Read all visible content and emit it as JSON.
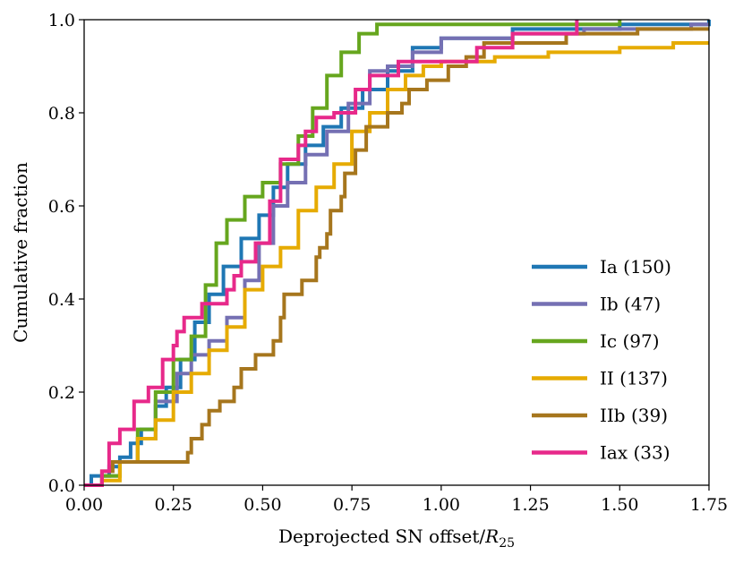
{
  "chart_data": {
    "type": "line",
    "step": true,
    "title": "",
    "xlabel": "Deprojected SN offset/",
    "xlabel_symbol": "R",
    "xlabel_subscript": "25",
    "ylabel": "Cumulative fraction",
    "xlim": [
      0.0,
      1.75
    ],
    "ylim": [
      0.0,
      1.0
    ],
    "xticks": [
      "0.00",
      "0.25",
      "0.50",
      "0.75",
      "1.00",
      "1.25",
      "1.50",
      "1.75"
    ],
    "yticks": [
      "0.0",
      "0.2",
      "0.4",
      "0.6",
      "0.8",
      "1.0"
    ],
    "legend_position": "lower-right",
    "series": [
      {
        "name": "Ia (150)",
        "color": "#1f77b4",
        "points": [
          [
            0,
            0
          ],
          [
            0.02,
            0.02
          ],
          [
            0.07,
            0.04
          ],
          [
            0.1,
            0.06
          ],
          [
            0.13,
            0.09
          ],
          [
            0.16,
            0.12
          ],
          [
            0.2,
            0.17
          ],
          [
            0.23,
            0.21
          ],
          [
            0.27,
            0.27
          ],
          [
            0.31,
            0.35
          ],
          [
            0.35,
            0.41
          ],
          [
            0.39,
            0.47
          ],
          [
            0.44,
            0.53
          ],
          [
            0.49,
            0.58
          ],
          [
            0.53,
            0.64
          ],
          [
            0.57,
            0.69
          ],
          [
            0.62,
            0.73
          ],
          [
            0.67,
            0.77
          ],
          [
            0.72,
            0.81
          ],
          [
            0.78,
            0.85
          ],
          [
            0.85,
            0.89
          ],
          [
            0.92,
            0.94
          ],
          [
            1.0,
            0.96
          ],
          [
            1.2,
            0.98
          ],
          [
            1.5,
            0.99
          ],
          [
            1.75,
            1.0
          ]
        ]
      },
      {
        "name": "Ib (47)",
        "color": "#7570b3",
        "points": [
          [
            0,
            0
          ],
          [
            0.05,
            0.02
          ],
          [
            0.1,
            0.05
          ],
          [
            0.15,
            0.1
          ],
          [
            0.2,
            0.18
          ],
          [
            0.26,
            0.24
          ],
          [
            0.3,
            0.28
          ],
          [
            0.35,
            0.31
          ],
          [
            0.4,
            0.36
          ],
          [
            0.45,
            0.44
          ],
          [
            0.49,
            0.52
          ],
          [
            0.53,
            0.6
          ],
          [
            0.57,
            0.65
          ],
          [
            0.62,
            0.71
          ],
          [
            0.68,
            0.76
          ],
          [
            0.74,
            0.82
          ],
          [
            0.8,
            0.89
          ],
          [
            0.85,
            0.9
          ],
          [
            0.92,
            0.93
          ],
          [
            1.0,
            0.96
          ],
          [
            1.2,
            0.97
          ],
          [
            1.4,
            0.98
          ],
          [
            1.7,
            0.99
          ],
          [
            1.75,
            0.99
          ]
        ]
      },
      {
        "name": "Ic (97)",
        "color": "#66a61e",
        "points": [
          [
            0,
            0
          ],
          [
            0.05,
            0.02
          ],
          [
            0.1,
            0.05
          ],
          [
            0.15,
            0.12
          ],
          [
            0.2,
            0.2
          ],
          [
            0.25,
            0.27
          ],
          [
            0.3,
            0.32
          ],
          [
            0.34,
            0.43
          ],
          [
            0.37,
            0.52
          ],
          [
            0.4,
            0.57
          ],
          [
            0.45,
            0.62
          ],
          [
            0.5,
            0.65
          ],
          [
            0.55,
            0.69
          ],
          [
            0.6,
            0.75
          ],
          [
            0.64,
            0.81
          ],
          [
            0.68,
            0.88
          ],
          [
            0.72,
            0.93
          ],
          [
            0.77,
            0.97
          ],
          [
            0.82,
            0.99
          ],
          [
            1.0,
            0.99
          ],
          [
            1.5,
            1.0
          ]
        ]
      },
      {
        "name": "II (137)",
        "color": "#e6ab02",
        "points": [
          [
            0,
            0
          ],
          [
            0.05,
            0.01
          ],
          [
            0.1,
            0.05
          ],
          [
            0.15,
            0.1
          ],
          [
            0.2,
            0.14
          ],
          [
            0.25,
            0.2
          ],
          [
            0.3,
            0.24
          ],
          [
            0.35,
            0.29
          ],
          [
            0.4,
            0.34
          ],
          [
            0.45,
            0.42
          ],
          [
            0.5,
            0.47
          ],
          [
            0.55,
            0.51
          ],
          [
            0.6,
            0.59
          ],
          [
            0.65,
            0.64
          ],
          [
            0.7,
            0.69
          ],
          [
            0.75,
            0.76
          ],
          [
            0.8,
            0.8
          ],
          [
            0.85,
            0.85
          ],
          [
            0.9,
            0.88
          ],
          [
            0.95,
            0.9
          ],
          [
            1.0,
            0.91
          ],
          [
            1.15,
            0.92
          ],
          [
            1.3,
            0.93
          ],
          [
            1.5,
            0.94
          ],
          [
            1.65,
            0.95
          ],
          [
            1.75,
            0.95
          ]
        ]
      },
      {
        "name": "IIb (39)",
        "color": "#a6761d",
        "points": [
          [
            0,
            0
          ],
          [
            0.05,
            0.03
          ],
          [
            0.08,
            0.05
          ],
          [
            0.29,
            0.07
          ],
          [
            0.3,
            0.1
          ],
          [
            0.33,
            0.13
          ],
          [
            0.35,
            0.16
          ],
          [
            0.38,
            0.18
          ],
          [
            0.42,
            0.21
          ],
          [
            0.44,
            0.25
          ],
          [
            0.48,
            0.28
          ],
          [
            0.53,
            0.31
          ],
          [
            0.55,
            0.36
          ],
          [
            0.56,
            0.41
          ],
          [
            0.61,
            0.44
          ],
          [
            0.65,
            0.49
          ],
          [
            0.66,
            0.51
          ],
          [
            0.68,
            0.54
          ],
          [
            0.69,
            0.59
          ],
          [
            0.72,
            0.62
          ],
          [
            0.73,
            0.67
          ],
          [
            0.76,
            0.72
          ],
          [
            0.79,
            0.77
          ],
          [
            0.85,
            0.8
          ],
          [
            0.89,
            0.82
          ],
          [
            0.91,
            0.85
          ],
          [
            0.96,
            0.87
          ],
          [
            1.02,
            0.9
          ],
          [
            1.07,
            0.92
          ],
          [
            1.12,
            0.95
          ],
          [
            1.35,
            0.97
          ],
          [
            1.55,
            0.98
          ],
          [
            1.75,
            0.98
          ]
        ]
      },
      {
        "name": "Iax (33)",
        "color": "#e7298a",
        "points": [
          [
            0,
            0
          ],
          [
            0.05,
            0.03
          ],
          [
            0.07,
            0.09
          ],
          [
            0.1,
            0.12
          ],
          [
            0.14,
            0.18
          ],
          [
            0.18,
            0.21
          ],
          [
            0.22,
            0.27
          ],
          [
            0.25,
            0.3
          ],
          [
            0.26,
            0.33
          ],
          [
            0.28,
            0.36
          ],
          [
            0.33,
            0.39
          ],
          [
            0.4,
            0.42
          ],
          [
            0.42,
            0.45
          ],
          [
            0.44,
            0.48
          ],
          [
            0.48,
            0.52
          ],
          [
            0.52,
            0.61
          ],
          [
            0.55,
            0.7
          ],
          [
            0.6,
            0.73
          ],
          [
            0.62,
            0.76
          ],
          [
            0.65,
            0.79
          ],
          [
            0.7,
            0.8
          ],
          [
            0.76,
            0.85
          ],
          [
            0.8,
            0.88
          ],
          [
            0.88,
            0.91
          ],
          [
            1.1,
            0.94
          ],
          [
            1.2,
            0.97
          ],
          [
            1.38,
            0.98
          ],
          [
            1.38,
            1.0
          ]
        ]
      }
    ]
  }
}
